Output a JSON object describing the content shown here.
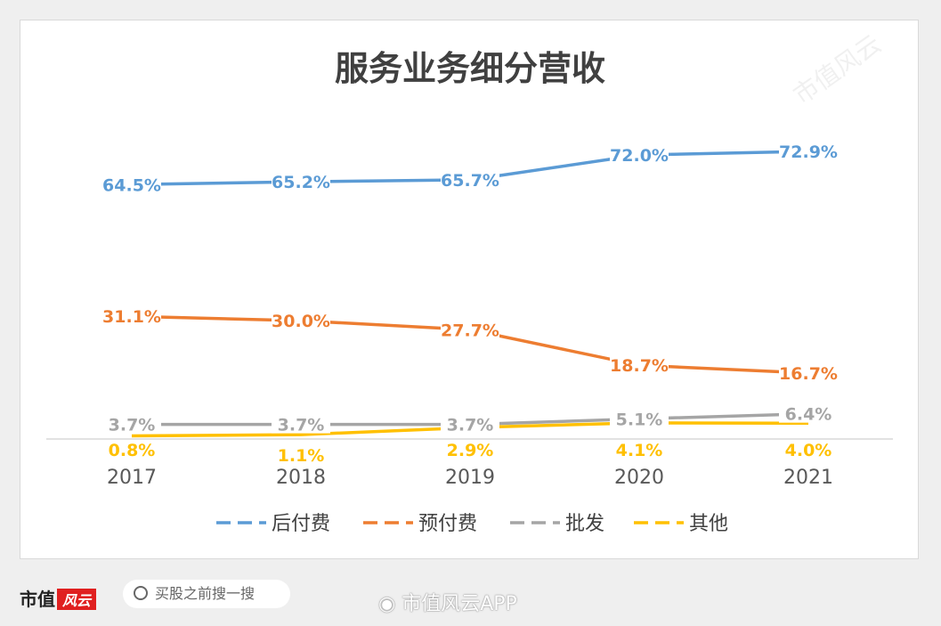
{
  "chart_data": {
    "type": "line",
    "title": "服务业务细分营收",
    "categories": [
      "2017",
      "2018",
      "2019",
      "2020",
      "2021"
    ],
    "series": [
      {
        "name": "后付费",
        "color": "#5b9bd5",
        "values": [
          64.5,
          65.2,
          65.7,
          72.0,
          72.9
        ],
        "labels": [
          "64.5%",
          "65.2%",
          "65.7%",
          "72.0%",
          "72.9%"
        ]
      },
      {
        "name": "预付费",
        "color": "#ed7d31",
        "values": [
          31.1,
          30.0,
          27.7,
          18.7,
          16.7
        ],
        "labels": [
          "31.1%",
          "30.0%",
          "27.7%",
          "18.7%",
          "16.7%"
        ]
      },
      {
        "name": "批发",
        "color": "#a5a5a5",
        "values": [
          3.7,
          3.7,
          3.7,
          5.1,
          6.4
        ],
        "labels": [
          "3.7%",
          "3.7%",
          "3.7%",
          "5.1%",
          "6.4%"
        ]
      },
      {
        "name": "其他",
        "color": "#ffc000",
        "values": [
          0.8,
          1.1,
          2.9,
          4.1,
          4.0
        ],
        "labels": [
          "0.8%",
          "1.1%",
          "2.9%",
          "4.1%",
          "4.0%"
        ]
      }
    ],
    "xlabel": "",
    "ylabel": "",
    "ylim": [
      0,
      80
    ],
    "grid": false,
    "legend": "bottom"
  },
  "watermark": "市值风云",
  "footer": {
    "brand": "市值",
    "brand_mark": "风云",
    "search_placeholder": "买股之前搜一搜",
    "weibo": "市值风云APP"
  }
}
